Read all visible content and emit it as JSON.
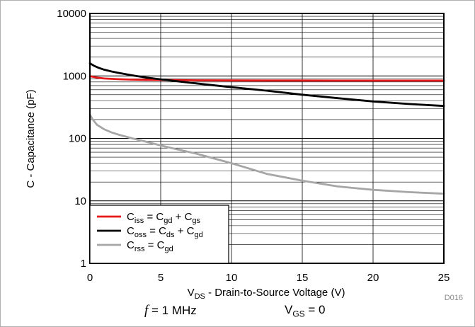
{
  "chart_data": {
    "type": "line",
    "xlabel": {
      "main": "V",
      "sub": "DS",
      "rest": " - Drain-to-Source Voltage (V)"
    },
    "ylabel": "C - Capacitance (pF)",
    "xlim": [
      0,
      25
    ],
    "ylim": [
      1,
      10000
    ],
    "yscale": "log",
    "grid": true,
    "x_ticks": [
      0,
      5,
      10,
      15,
      20,
      25
    ],
    "y_ticks": [
      {
        "value": 1,
        "label": "1"
      },
      {
        "value": 10,
        "label": "10"
      },
      {
        "value": 100,
        "label": "100"
      },
      {
        "value": 1000,
        "label": "1000"
      },
      {
        "value": 10000,
        "label": "10000"
      }
    ],
    "legend_position": "bottom-left",
    "series": [
      {
        "legend": [
          [
            "C",
            "normal"
          ],
          [
            "iss",
            "sub"
          ],
          [
            " = C",
            "normal"
          ],
          [
            "gd",
            "sub"
          ],
          [
            " + C",
            "normal"
          ],
          [
            "gs",
            "sub"
          ]
        ],
        "color": "#e8191a",
        "x": [
          0,
          0.1,
          0.5,
          1,
          2,
          3,
          4,
          5,
          7.5,
          10,
          12.5,
          15,
          17.5,
          20,
          22.5,
          25
        ],
        "y": [
          990,
          980,
          940,
          910,
          885,
          872,
          865,
          860,
          850,
          845,
          843,
          842,
          841,
          840,
          840,
          840
        ]
      },
      {
        "legend": [
          [
            "C",
            "normal"
          ],
          [
            "oss",
            "sub"
          ],
          [
            " = C",
            "normal"
          ],
          [
            "ds",
            "sub"
          ],
          [
            " + C",
            "normal"
          ],
          [
            "gd",
            "sub"
          ]
        ],
        "color": "#000000",
        "x": [
          0,
          0.1,
          0.3,
          0.6,
          1,
          1.5,
          2,
          3,
          4,
          5,
          7.5,
          10,
          12.5,
          15,
          17.5,
          20,
          22.5,
          25
        ],
        "y": [
          1600,
          1540,
          1450,
          1350,
          1260,
          1180,
          1120,
          1020,
          940,
          880,
          760,
          660,
          580,
          500,
          440,
          390,
          355,
          330
        ]
      },
      {
        "legend": [
          [
            "C",
            "normal"
          ],
          [
            "rss",
            "sub"
          ],
          [
            " = C",
            "normal"
          ],
          [
            "gd",
            "sub"
          ]
        ],
        "color": "#a6a6a6",
        "x": [
          0,
          0.2,
          0.5,
          1,
          1.5,
          2,
          3,
          4,
          5,
          6,
          7.5,
          10,
          12.5,
          15,
          17.5,
          20,
          22.5,
          25
        ],
        "y": [
          240,
          200,
          165,
          140,
          125,
          115,
          100,
          88,
          77,
          68,
          57,
          40,
          27,
          21,
          17,
          15,
          13.8,
          13
        ]
      }
    ]
  },
  "chart_id": "D016",
  "footer": {
    "freq_symbol": "f",
    "freq_rest": " = 1 MHz",
    "vgs_main": "V",
    "vgs_sub": "GS",
    "vgs_rest": " = 0"
  }
}
